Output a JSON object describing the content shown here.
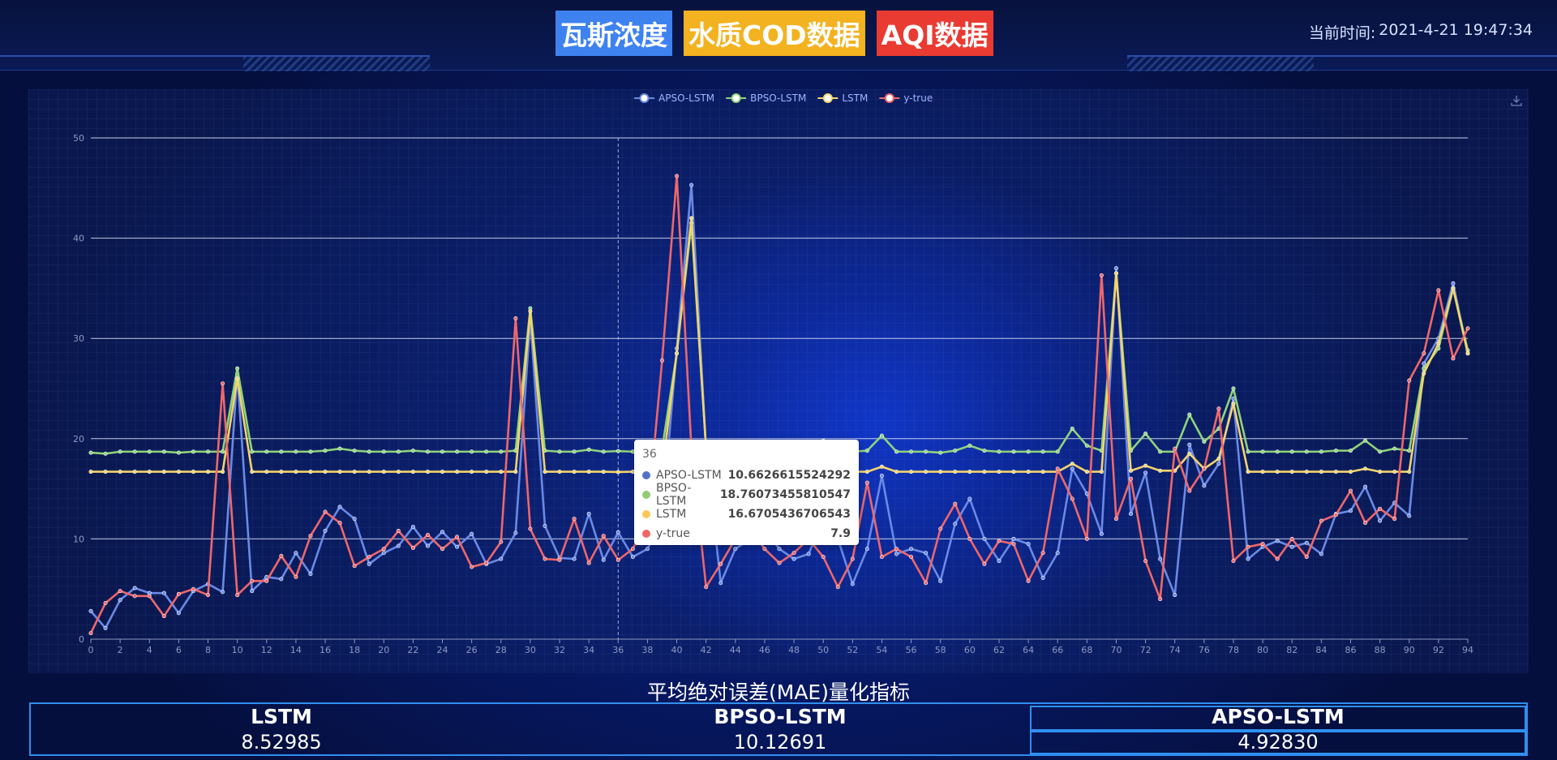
{
  "header": {
    "tabs": [
      "瓦斯浓度",
      "水质COD数据",
      "AQI数据"
    ],
    "clock_label": "当前时间:",
    "clock_value": "2021-4-21 19:47:34"
  },
  "colors": {
    "APSO-LSTM": "#6a8ae6",
    "BPSO-LSTM": "#8fd47a",
    "LSTM": "#f3d46b",
    "y-true": "#f0676a",
    "tab_blue": "#3e82f0",
    "tab_yellow": "#f3b21f",
    "tab_red": "#ea3b32"
  },
  "chart_data": {
    "type": "line",
    "legend": [
      "APSO-LSTM",
      "BPSO-LSTM",
      "LSTM",
      "y-true"
    ],
    "legend_position": "top-center",
    "x": [
      0,
      1,
      2,
      3,
      4,
      5,
      6,
      7,
      8,
      9,
      10,
      11,
      12,
      13,
      14,
      15,
      16,
      17,
      18,
      19,
      20,
      21,
      22,
      23,
      24,
      25,
      26,
      27,
      28,
      29,
      30,
      31,
      32,
      33,
      34,
      35,
      36,
      37,
      38,
      39,
      40,
      41,
      42,
      43,
      44,
      45,
      46,
      47,
      48,
      49,
      50,
      51,
      52,
      53,
      54,
      55,
      56,
      57,
      58,
      59,
      60,
      61,
      62,
      63,
      64,
      65,
      66,
      67,
      68,
      69,
      70,
      71,
      72,
      73,
      74,
      75,
      76,
      77,
      78,
      79,
      80,
      81,
      82,
      83,
      84,
      85,
      86,
      87,
      88,
      89,
      90,
      91,
      92,
      93,
      94
    ],
    "x_tick_step": 2,
    "ylim": [
      0,
      50
    ],
    "yticks": [
      0,
      10,
      20,
      30,
      40,
      50
    ],
    "grid": "horizontal",
    "series": [
      {
        "name": "APSO-LSTM",
        "values": [
          2.8,
          1.1,
          3.9,
          5.1,
          4.6,
          4.6,
          2.6,
          4.8,
          5.5,
          4.7,
          26.5,
          4.8,
          6.2,
          6.0,
          8.6,
          6.5,
          10.8,
          13.2,
          12.0,
          7.5,
          8.6,
          9.3,
          11.2,
          9.3,
          10.7,
          9.2,
          10.5,
          7.5,
          8.0,
          10.6,
          32.0,
          11.3,
          8.1,
          8.0,
          12.5,
          7.9,
          10.66,
          8.2,
          9.0,
          12.0,
          29.0,
          45.3,
          19.0,
          5.6,
          9.0,
          10.0,
          11.0,
          9.0,
          8.0,
          8.5,
          12.0,
          10.0,
          5.5,
          9.0,
          16.3,
          8.5,
          9.0,
          8.6,
          5.8,
          11.5,
          14.0,
          10.0,
          7.8,
          10.0,
          9.5,
          6.1,
          8.6,
          17.0,
          14.5,
          10.5,
          37.0,
          12.5,
          16.6,
          8.0,
          4.4,
          19.4,
          15.3,
          17.5,
          24.0,
          8.0,
          9.2,
          9.8,
          9.2,
          9.6,
          8.5,
          12.5,
          12.8,
          15.2,
          11.8,
          13.6,
          12.3,
          27.5,
          30.0,
          35.5,
          28.5
        ]
      },
      {
        "name": "BPSO-LSTM",
        "values": [
          18.6,
          18.5,
          18.7,
          18.7,
          18.7,
          18.7,
          18.6,
          18.7,
          18.7,
          18.7,
          27.0,
          18.7,
          18.7,
          18.7,
          18.7,
          18.7,
          18.8,
          19.0,
          18.8,
          18.7,
          18.7,
          18.7,
          18.8,
          18.7,
          18.7,
          18.7,
          18.7,
          18.7,
          18.7,
          18.8,
          33.0,
          18.8,
          18.7,
          18.7,
          18.9,
          18.7,
          18.76,
          18.7,
          18.8,
          19.0,
          28.5,
          41.5,
          19.0,
          18.7,
          18.7,
          18.8,
          18.8,
          18.7,
          18.7,
          18.7,
          19.8,
          18.7,
          18.7,
          18.8,
          20.3,
          18.7,
          18.7,
          18.7,
          18.6,
          18.8,
          19.3,
          18.8,
          18.7,
          18.7,
          18.7,
          18.7,
          18.7,
          21.0,
          19.3,
          18.8,
          36.5,
          18.8,
          20.5,
          18.7,
          18.7,
          22.4,
          19.7,
          21.0,
          25.0,
          18.7,
          18.7,
          18.7,
          18.7,
          18.7,
          18.7,
          18.8,
          18.8,
          19.8,
          18.7,
          19.0,
          18.8,
          27.0,
          29.0,
          35.0,
          28.8
        ]
      },
      {
        "name": "LSTM",
        "values": [
          16.7,
          16.7,
          16.7,
          16.7,
          16.7,
          16.7,
          16.7,
          16.7,
          16.7,
          16.7,
          26.0,
          16.7,
          16.7,
          16.7,
          16.7,
          16.7,
          16.7,
          16.7,
          16.7,
          16.7,
          16.7,
          16.7,
          16.7,
          16.7,
          16.7,
          16.7,
          16.7,
          16.7,
          16.7,
          16.7,
          32.7,
          16.7,
          16.7,
          16.7,
          16.7,
          16.7,
          16.67,
          16.7,
          16.7,
          16.7,
          28.5,
          42.0,
          19.0,
          16.7,
          16.7,
          16.7,
          16.7,
          16.7,
          16.7,
          16.7,
          16.7,
          16.7,
          16.7,
          16.7,
          17.2,
          16.7,
          16.7,
          16.7,
          16.7,
          16.7,
          16.7,
          16.7,
          16.7,
          16.7,
          16.7,
          16.7,
          16.7,
          17.5,
          16.7,
          16.7,
          36.5,
          16.8,
          17.3,
          16.8,
          16.8,
          18.5,
          17.0,
          18.0,
          23.5,
          16.7,
          16.7,
          16.7,
          16.7,
          16.7,
          16.7,
          16.7,
          16.7,
          17.0,
          16.7,
          16.7,
          16.7,
          26.5,
          29.5,
          35.0,
          28.5
        ]
      },
      {
        "name": "y-true",
        "values": [
          0.6,
          3.6,
          4.8,
          4.3,
          4.3,
          2.3,
          4.5,
          5.0,
          4.4,
          25.5,
          4.4,
          5.8,
          5.8,
          8.3,
          6.2,
          10.3,
          12.7,
          11.6,
          7.3,
          8.2,
          9.0,
          10.8,
          9.1,
          10.4,
          9.0,
          10.2,
          7.2,
          7.6,
          9.7,
          32.0,
          11.0,
          8.0,
          7.9,
          12.0,
          7.6,
          10.3,
          7.9,
          9.0,
          12.0,
          27.8,
          46.2,
          19.0,
          5.2,
          7.5,
          10.0,
          11.0,
          9.0,
          7.6,
          8.6,
          10.0,
          8.2,
          5.2,
          8.0,
          15.6,
          8.2,
          9.0,
          8.2,
          5.6,
          11.0,
          13.5,
          10.0,
          7.5,
          9.8,
          9.5,
          5.8,
          8.6,
          17.0,
          14.0,
          10.0,
          36.3,
          12.0,
          16.0,
          7.8,
          4.0,
          19.0,
          14.8,
          17.0,
          23.0,
          7.8,
          9.2,
          9.5,
          8.0,
          10.0,
          8.2,
          11.8,
          12.4,
          14.8,
          11.6,
          13.0,
          12.0,
          25.8,
          28.5,
          34.8,
          28.0,
          31.0
        ]
      }
    ],
    "tooltip": {
      "x": "36",
      "items": [
        {
          "name": "APSO-LSTM",
          "value": "10.6626615524292"
        },
        {
          "name": "BPSO-LSTM",
          "value": "18.76073455810547"
        },
        {
          "name": "LSTM",
          "value": "16.6705436706543"
        },
        {
          "name": "y-true",
          "value": "7.9"
        }
      ]
    }
  },
  "mae": {
    "title": "平均绝对误差(MAE)量化指标",
    "columns": [
      {
        "label": "LSTM",
        "value": "8.52985"
      },
      {
        "label": "BPSO-LSTM",
        "value": "10.12691"
      },
      {
        "label": "APSO-LSTM",
        "value": "4.92830"
      }
    ]
  }
}
